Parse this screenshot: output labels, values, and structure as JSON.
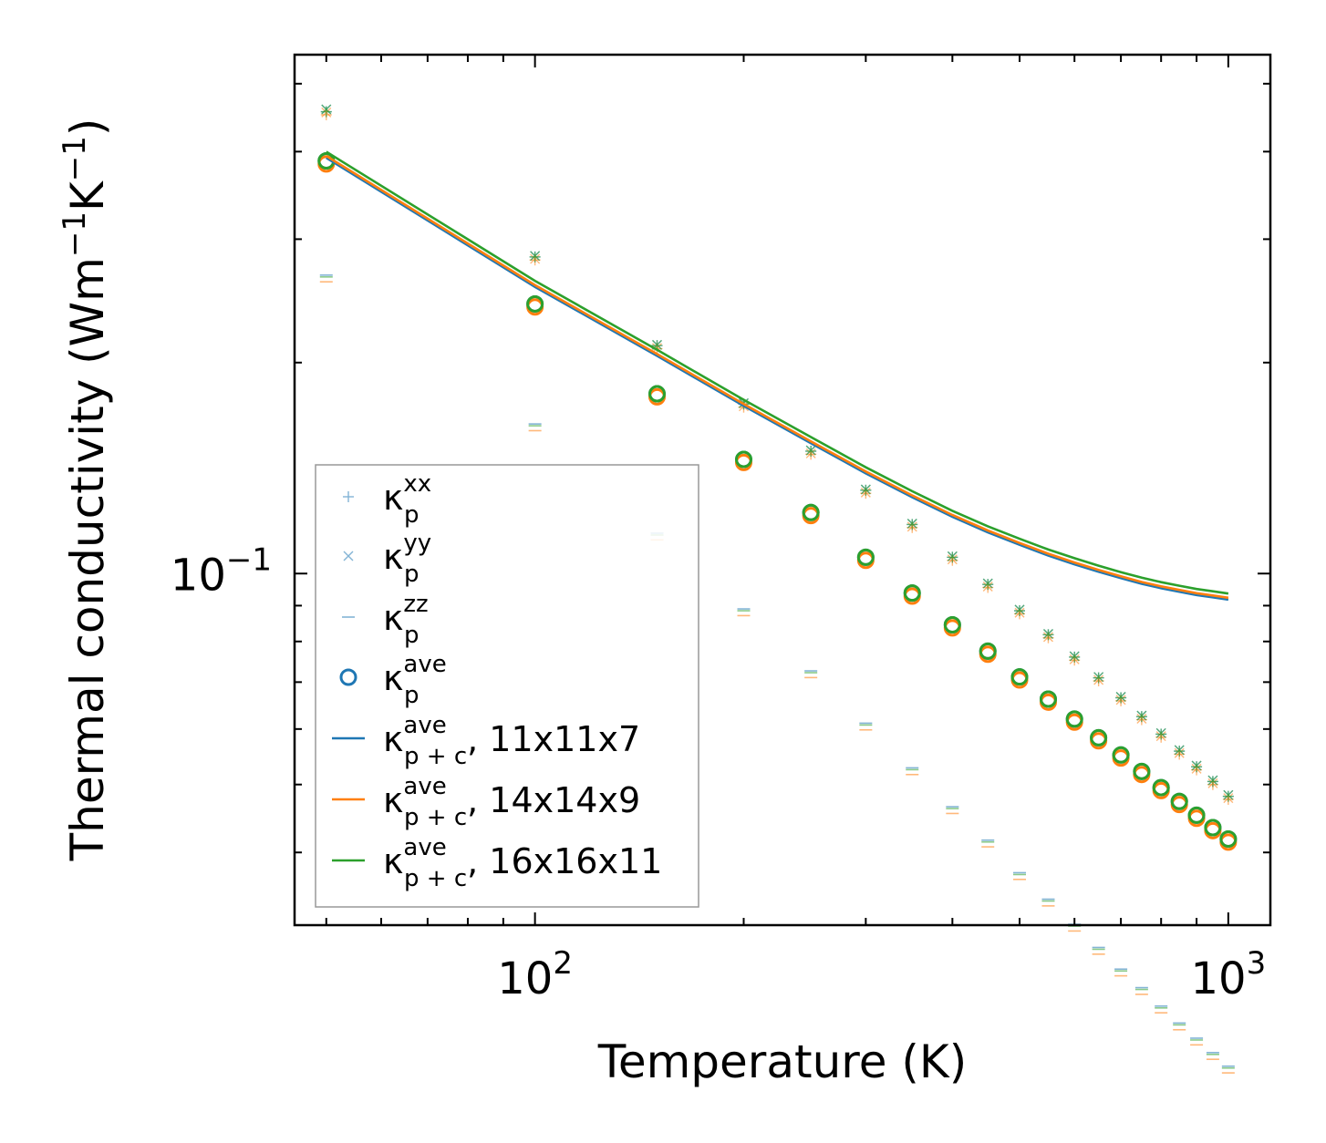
{
  "chart_data": {
    "type": "scatter",
    "xscale": "log",
    "yscale": "log",
    "xlim": [
      45,
      1150
    ],
    "ylim": [
      0.0315,
      0.55
    ],
    "xlabel": "Temperature (K)",
    "ylabel": {
      "base": "Thermal conductivity (Wm",
      "exp1": "−1",
      "mid": "K",
      "exp2": "−1",
      "close": ")"
    },
    "x_ticks": [
      {
        "value": 100,
        "base": "10",
        "exp": "2"
      },
      {
        "value": 1000,
        "base": "10",
        "exp": "3"
      }
    ],
    "y_ticks": [
      {
        "value": 0.1,
        "base": "10",
        "exp": "−1"
      }
    ],
    "temperatures": [
      50,
      100,
      150,
      200,
      250,
      300,
      350,
      400,
      450,
      500,
      550,
      600,
      650,
      700,
      750,
      800,
      850,
      900,
      950,
      1000
    ],
    "scatter_series": [
      {
        "name": "kxx",
        "marker": "plus",
        "color": "#1f77b4",
        "offset": 0,
        "values": [
          0.456,
          0.283,
          0.2115,
          0.1745,
          0.1495,
          0.1315,
          0.1175,
          0.1055,
          0.0965,
          0.0885,
          0.0818,
          0.076,
          0.071,
          0.0665,
          0.0625,
          0.059,
          0.0558,
          0.053,
          0.0505,
          0.0481
        ]
      },
      {
        "name": "kyy",
        "marker": "x",
        "color": "#1f77b4",
        "offset": 0,
        "values": [
          0.4595,
          0.284,
          0.212,
          0.175,
          0.1499,
          0.1318,
          0.1178,
          0.1058,
          0.0968,
          0.0888,
          0.082,
          0.0762,
          0.0712,
          0.0667,
          0.0627,
          0.0592,
          0.056,
          0.0532,
          0.0507,
          0.0483
        ]
      },
      {
        "name": "kzz",
        "marker": "dash",
        "color": "#1f77b4",
        "offset": 1,
        "values": [
          0.265,
          0.1625,
          0.1135,
          0.0885,
          0.0722,
          0.0608,
          0.0525,
          0.0462,
          0.0414,
          0.0372,
          0.0341,
          0.0314,
          0.0291,
          0.0271,
          0.0255,
          0.024,
          0.0227,
          0.0216,
          0.0206,
          0.0197
        ]
      },
      {
        "name": "kave",
        "marker": "circle",
        "color": "#1f77b4",
        "offset": 0,
        "values": [
          0.388,
          0.2425,
          0.1805,
          0.1455,
          0.1222,
          0.1055,
          0.0938,
          0.0845,
          0.0775,
          0.0712,
          0.0662,
          0.062,
          0.0583,
          0.0551,
          0.0522,
          0.0495,
          0.0473,
          0.0452,
          0.0434,
          0.0418
        ]
      }
    ],
    "grid_copies": [
      {
        "grid": "11x11x7",
        "color": "#1f77b4",
        "scale": 1.0,
        "line_scale": 1.0
      },
      {
        "grid": "14x14x9",
        "color": "#ff7f0e",
        "scale": 0.99,
        "line_scale": 1.006
      },
      {
        "grid": "16x16x11",
        "color": "#2ca02c",
        "scale": 1.0,
        "line_scale": 1.02
      }
    ],
    "line_base": {
      "name": "kave_pc",
      "values": [
        0.392,
        0.2565,
        0.2045,
        0.1735,
        0.1535,
        0.139,
        0.1285,
        0.1205,
        0.1145,
        0.1099,
        0.1061,
        0.1031,
        0.1006,
        0.0985,
        0.0967,
        0.0953,
        0.0942,
        0.0932,
        0.0925,
        0.0918
      ]
    },
    "legend": {
      "position": "lower-left",
      "entries": [
        {
          "marker": "plus",
          "color": "#1f77b4",
          "base": "κ",
          "sup": "xx",
          "sub": "p",
          "suffix": ""
        },
        {
          "marker": "x",
          "color": "#1f77b4",
          "base": "κ",
          "sup": "yy",
          "sub": "p",
          "suffix": ""
        },
        {
          "marker": "dash",
          "color": "#1f77b4",
          "base": "κ",
          "sup": "zz",
          "sub": "p",
          "suffix": ""
        },
        {
          "marker": "circle",
          "color": "#1f77b4",
          "base": "κ",
          "sup": "ave",
          "sub": "p",
          "suffix": ""
        },
        {
          "marker": "line",
          "color": "#1f77b4",
          "base": "κ",
          "sup": "ave",
          "sub": "p + c",
          "suffix": ", 11x11x7"
        },
        {
          "marker": "line",
          "color": "#ff7f0e",
          "base": "κ",
          "sup": "ave",
          "sub": "p + c",
          "suffix": ", 14x14x9"
        },
        {
          "marker": "line",
          "color": "#2ca02c",
          "base": "κ",
          "sup": "ave",
          "sub": "p + c",
          "suffix": ", 16x16x11"
        }
      ]
    }
  }
}
